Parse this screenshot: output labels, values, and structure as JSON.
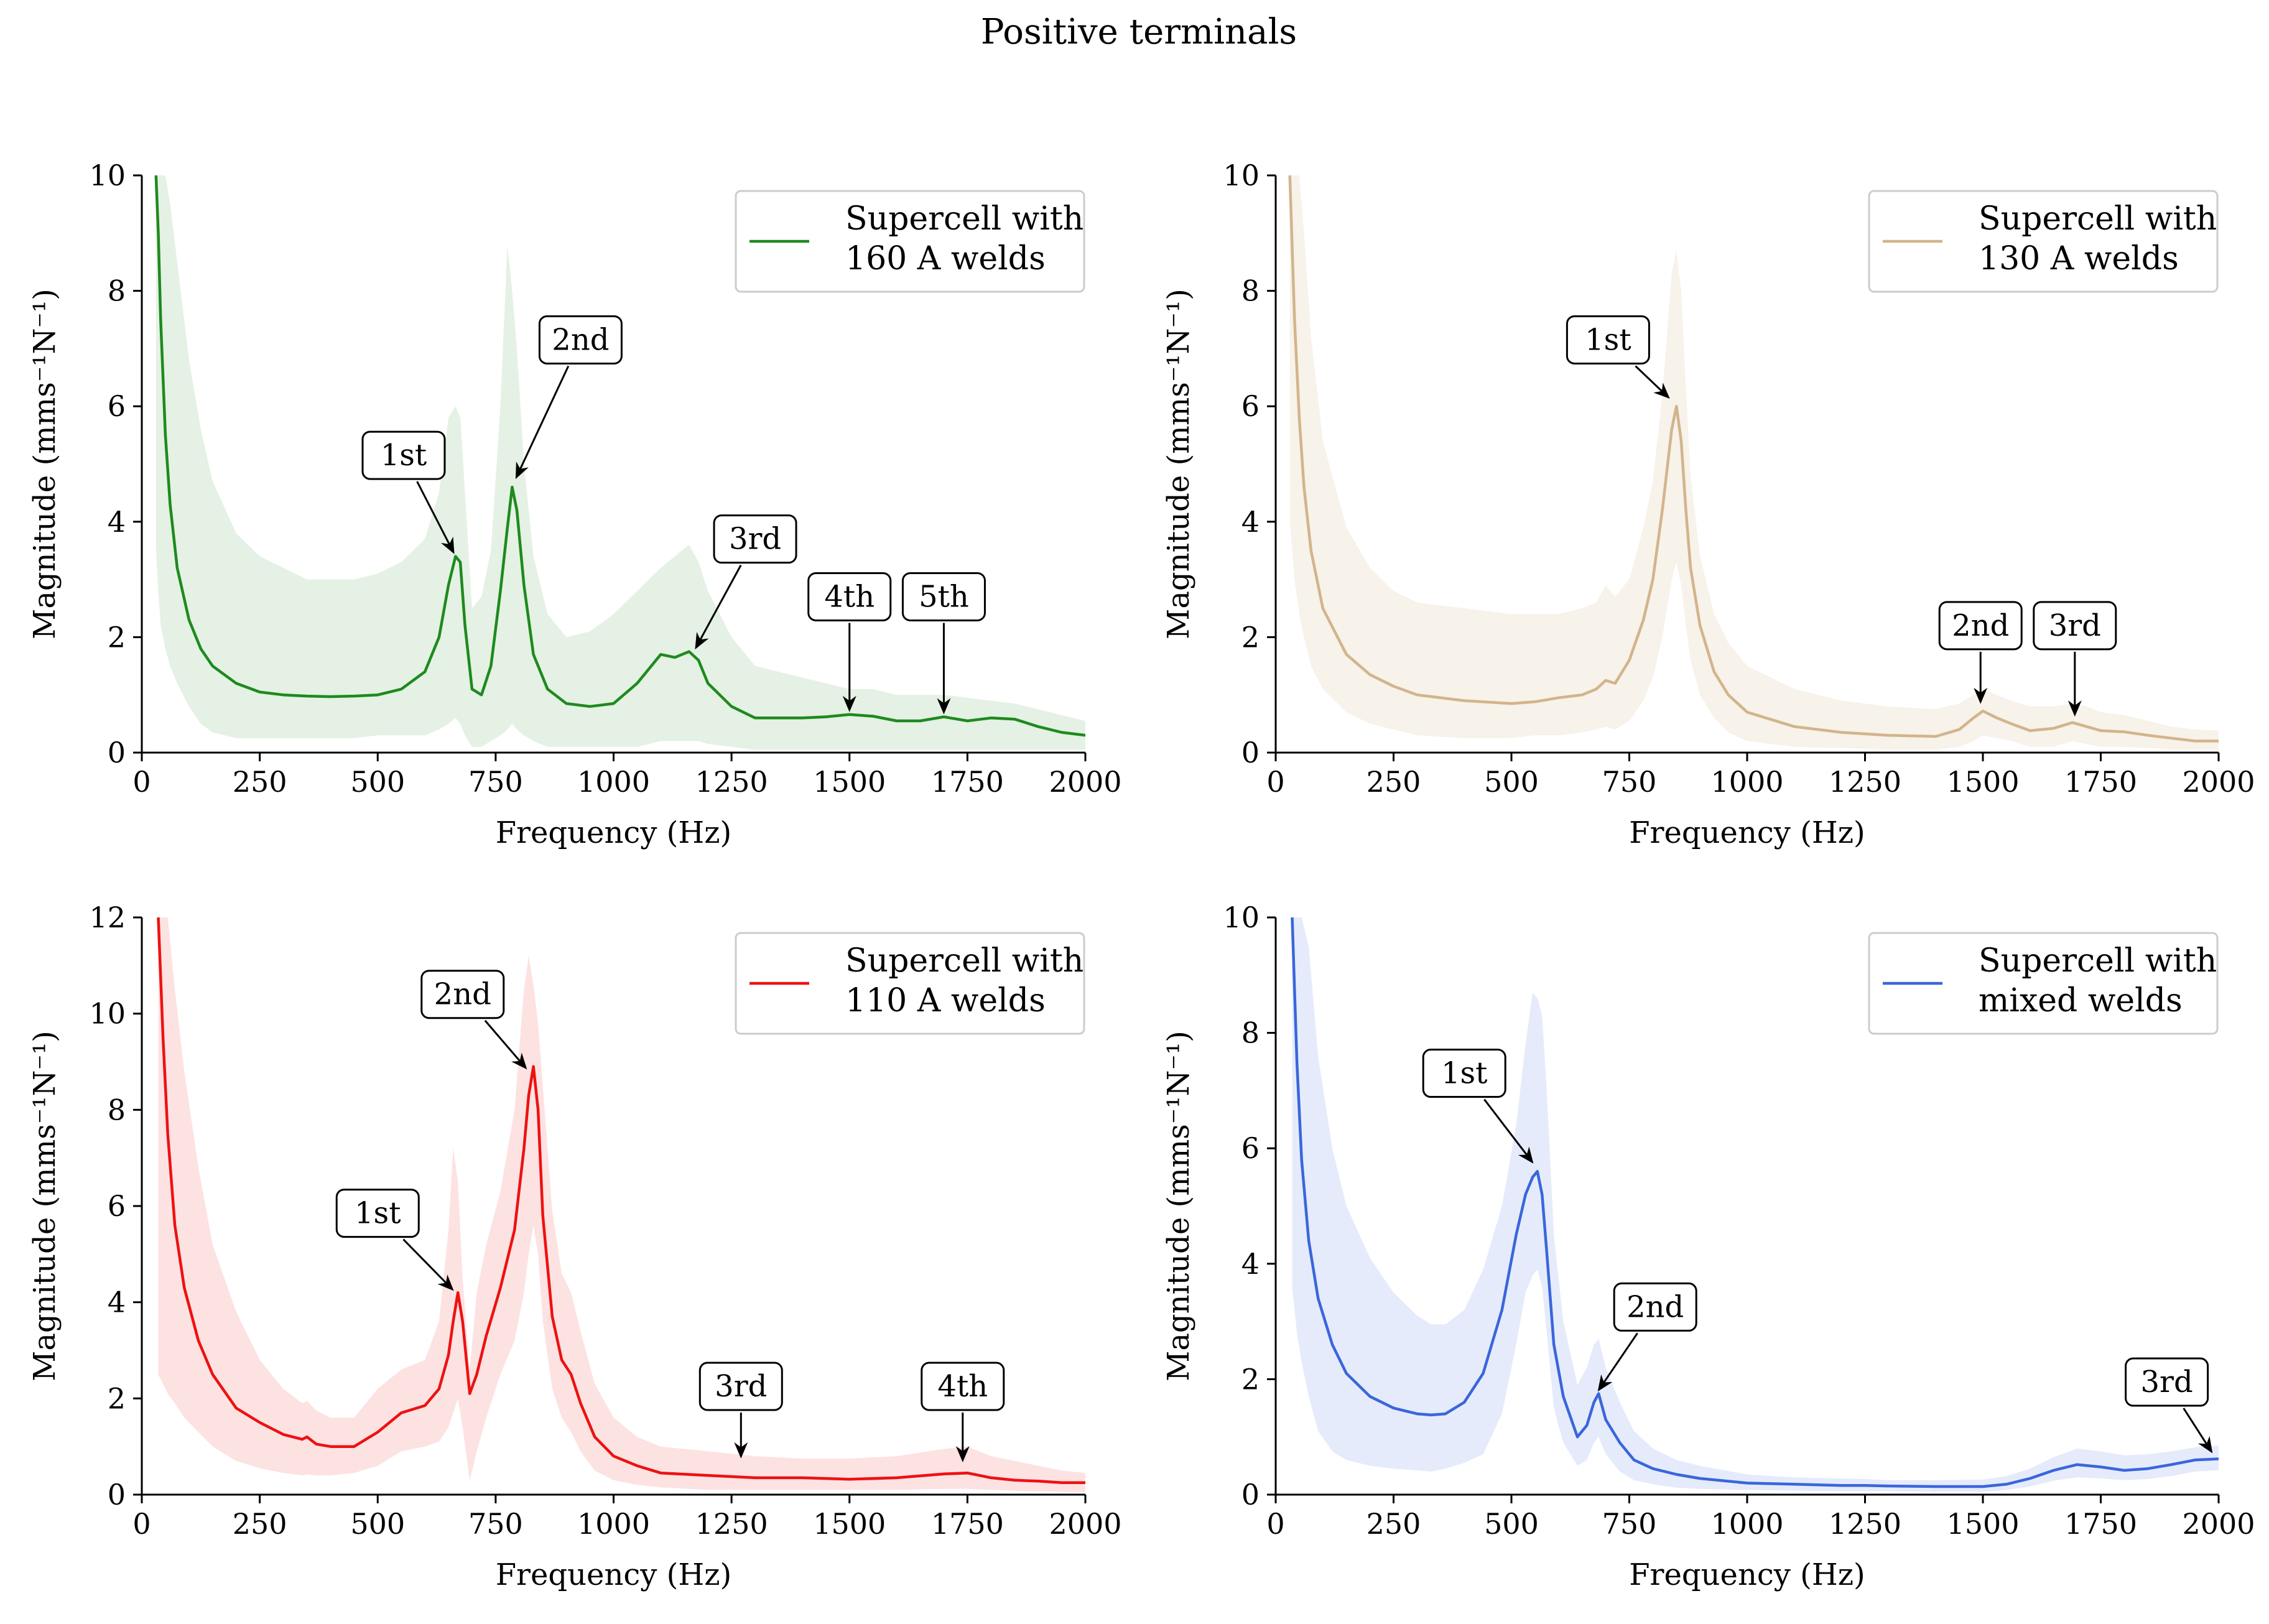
{
  "suptitle": "Positive terminals",
  "chart_data": [
    {
      "type": "line",
      "id": "160a",
      "legend": [
        "Supercell with",
        "160 A welds"
      ],
      "color": "#1e8a1e",
      "band_color": "#e4f1e4",
      "xlabel": "Frequency (Hz)",
      "ylabel": "Magnitude (mms⁻¹N⁻¹)",
      "xlim": [
        0,
        2000
      ],
      "ylim": [
        0,
        10
      ],
      "xticks": [
        0,
        250,
        500,
        750,
        1000,
        1250,
        1500,
        1750,
        2000
      ],
      "yticks": [
        0,
        2,
        4,
        6,
        8,
        10
      ],
      "x": [
        30,
        35,
        40,
        50,
        60,
        75,
        100,
        125,
        150,
        200,
        250,
        300,
        350,
        400,
        450,
        500,
        550,
        600,
        630,
        650,
        665,
        675,
        685,
        700,
        720,
        740,
        760,
        775,
        785,
        795,
        810,
        830,
        860,
        900,
        950,
        1000,
        1050,
        1100,
        1130,
        1160,
        1180,
        1200,
        1250,
        1300,
        1350,
        1400,
        1450,
        1500,
        1550,
        1600,
        1650,
        1700,
        1750,
        1800,
        1850,
        1900,
        1950,
        2000
      ],
      "y": [
        10,
        9,
        7.5,
        5.5,
        4.3,
        3.2,
        2.3,
        1.8,
        1.5,
        1.2,
        1.05,
        1.0,
        0.98,
        0.97,
        0.98,
        1.0,
        1.1,
        1.4,
        2.0,
        2.9,
        3.4,
        3.3,
        2.2,
        1.1,
        1.0,
        1.5,
        2.8,
        3.9,
        4.6,
        4.2,
        2.9,
        1.7,
        1.1,
        0.85,
        0.8,
        0.85,
        1.2,
        1.7,
        1.65,
        1.75,
        1.6,
        1.2,
        0.8,
        0.6,
        0.6,
        0.6,
        0.62,
        0.66,
        0.63,
        0.55,
        0.55,
        0.62,
        0.55,
        0.6,
        0.58,
        0.45,
        0.35,
        0.3
      ],
      "upper": [
        10,
        10,
        10,
        10,
        9.5,
        8.5,
        6.8,
        5.6,
        4.7,
        3.8,
        3.4,
        3.2,
        3.0,
        3.0,
        3.0,
        3.1,
        3.3,
        3.7,
        4.5,
        5.8,
        6.0,
        5.8,
        4.5,
        2.5,
        2.7,
        3.5,
        6.0,
        8.8,
        8.0,
        7.0,
        5.0,
        3.4,
        2.4,
        2.0,
        2.1,
        2.4,
        2.8,
        3.2,
        3.4,
        3.6,
        3.3,
        2.8,
        2.0,
        1.5,
        1.4,
        1.3,
        1.2,
        1.1,
        1.1,
        1.0,
        1.0,
        1.0,
        0.95,
        0.9,
        0.85,
        0.75,
        0.65,
        0.55
      ],
      "lower": [
        3.5,
        2.8,
        2.2,
        1.8,
        1.5,
        1.2,
        0.8,
        0.5,
        0.35,
        0.25,
        0.25,
        0.25,
        0.25,
        0.25,
        0.25,
        0.3,
        0.3,
        0.3,
        0.4,
        0.5,
        0.6,
        0.5,
        0.3,
        0.1,
        0.1,
        0.2,
        0.3,
        0.4,
        0.5,
        0.4,
        0.3,
        0.2,
        0.1,
        0.1,
        0.1,
        0.1,
        0.1,
        0.2,
        0.2,
        0.2,
        0.2,
        0.15,
        0.1,
        0.05,
        0.05,
        0.05,
        0.05,
        0.05,
        0.05,
        0.05,
        0.05,
        0.05,
        0.05,
        0.05,
        0.05,
        0.05,
        0.05,
        0.05
      ],
      "annotations": [
        {
          "label": "1st",
          "x": 665,
          "y": 3.4,
          "text_x": 555,
          "text_y": 5.15
        },
        {
          "label": "2nd",
          "x": 790,
          "y": 4.7,
          "text_x": 930,
          "text_y": 7.15
        },
        {
          "label": "3rd",
          "x": 1170,
          "y": 1.75,
          "text_x": 1300,
          "text_y": 3.7
        },
        {
          "label": "4th",
          "x": 1500,
          "y": 0.66,
          "text_x": 1500,
          "text_y": 2.7
        },
        {
          "label": "5th",
          "x": 1700,
          "y": 0.62,
          "text_x": 1700,
          "text_y": 2.7
        }
      ]
    },
    {
      "type": "line",
      "id": "130a",
      "legend": [
        "Supercell with",
        "130 A welds"
      ],
      "color": "#d2b48c",
      "band_color": "#f7f2ea",
      "xlabel": "Frequency (Hz)",
      "ylabel": "Magnitude (mms⁻¹N⁻¹)",
      "xlim": [
        0,
        2000
      ],
      "ylim": [
        0,
        10
      ],
      "xticks": [
        0,
        250,
        500,
        750,
        1000,
        1250,
        1500,
        1750,
        2000
      ],
      "yticks": [
        0,
        2,
        4,
        6,
        8,
        10
      ],
      "x": [
        30,
        40,
        50,
        60,
        75,
        100,
        150,
        200,
        250,
        300,
        400,
        500,
        550,
        600,
        650,
        680,
        700,
        720,
        750,
        780,
        800,
        820,
        840,
        850,
        860,
        870,
        880,
        900,
        930,
        960,
        1000,
        1100,
        1200,
        1300,
        1400,
        1450,
        1480,
        1500,
        1530,
        1560,
        1600,
        1650,
        1690,
        1720,
        1750,
        1800,
        1850,
        1900,
        1950,
        2000
      ],
      "y": [
        10,
        7.5,
        5.8,
        4.6,
        3.5,
        2.5,
        1.7,
        1.35,
        1.15,
        1.0,
        0.9,
        0.85,
        0.88,
        0.95,
        1.0,
        1.1,
        1.25,
        1.2,
        1.6,
        2.3,
        3.0,
        4.2,
        5.6,
        6.0,
        5.4,
        4.2,
        3.2,
        2.2,
        1.4,
        1.0,
        0.7,
        0.45,
        0.35,
        0.3,
        0.28,
        0.4,
        0.6,
        0.72,
        0.6,
        0.5,
        0.38,
        0.42,
        0.52,
        0.45,
        0.38,
        0.36,
        0.3,
        0.25,
        0.2,
        0.2
      ],
      "upper": [
        10,
        10,
        10,
        9.0,
        7.2,
        5.4,
        3.9,
        3.2,
        2.8,
        2.6,
        2.5,
        2.4,
        2.4,
        2.4,
        2.5,
        2.6,
        2.9,
        2.7,
        3.0,
        3.9,
        4.7,
        6.2,
        8.3,
        8.7,
        8.0,
        6.3,
        4.8,
        3.4,
        2.4,
        1.9,
        1.5,
        1.1,
        0.9,
        0.8,
        0.75,
        0.85,
        1.0,
        1.1,
        1.0,
        0.9,
        0.8,
        0.8,
        0.85,
        0.8,
        0.7,
        0.65,
        0.55,
        0.45,
        0.4,
        0.38
      ],
      "lower": [
        4.0,
        3.0,
        2.4,
        2.0,
        1.5,
        1.1,
        0.7,
        0.5,
        0.4,
        0.3,
        0.25,
        0.25,
        0.3,
        0.3,
        0.35,
        0.4,
        0.45,
        0.4,
        0.55,
        0.9,
        1.3,
        2.0,
        3.0,
        3.3,
        2.9,
        2.2,
        1.6,
        1.0,
        0.6,
        0.35,
        0.2,
        0.1,
        0.08,
        0.05,
        0.05,
        0.1,
        0.2,
        0.3,
        0.25,
        0.2,
        0.1,
        0.1,
        0.2,
        0.15,
        0.1,
        0.1,
        0.08,
        0.05,
        0.05,
        0.05
      ],
      "annotations": [
        {
          "label": "1st",
          "x": 840,
          "y": 6.1,
          "text_x": 705,
          "text_y": 7.15
        },
        {
          "label": "2nd",
          "x": 1495,
          "y": 0.8,
          "text_x": 1495,
          "text_y": 2.2
        },
        {
          "label": "3rd",
          "x": 1695,
          "y": 0.58,
          "text_x": 1695,
          "text_y": 2.2
        }
      ]
    },
    {
      "type": "line",
      "id": "110a",
      "legend": [
        "Supercell with",
        "110 A welds"
      ],
      "color": "#ee1111",
      "band_color": "#fde2e2",
      "xlabel": "Frequency (Hz)",
      "ylabel": "Magnitude (mms⁻¹N⁻¹)",
      "xlim": [
        0,
        2000
      ],
      "ylim": [
        0,
        12
      ],
      "xticks": [
        0,
        250,
        500,
        750,
        1000,
        1250,
        1500,
        1750,
        2000
      ],
      "yticks": [
        0,
        2,
        4,
        6,
        8,
        10,
        12
      ],
      "x": [
        35,
        45,
        55,
        70,
        90,
        120,
        150,
        200,
        250,
        300,
        340,
        350,
        370,
        400,
        450,
        500,
        550,
        600,
        630,
        650,
        660,
        670,
        680,
        695,
        710,
        730,
        760,
        790,
        810,
        820,
        830,
        840,
        850,
        870,
        890,
        910,
        930,
        960,
        1000,
        1050,
        1100,
        1200,
        1300,
        1400,
        1500,
        1600,
        1700,
        1750,
        1800,
        1850,
        1900,
        1950,
        2000
      ],
      "y": [
        12,
        9.5,
        7.5,
        5.6,
        4.3,
        3.2,
        2.5,
        1.8,
        1.5,
        1.25,
        1.15,
        1.2,
        1.05,
        1.0,
        1.0,
        1.3,
        1.7,
        1.85,
        2.2,
        2.9,
        3.6,
        4.2,
        3.6,
        2.1,
        2.5,
        3.3,
        4.3,
        5.5,
        7.2,
        8.3,
        8.9,
        8.0,
        5.8,
        3.7,
        2.8,
        2.5,
        1.9,
        1.2,
        0.8,
        0.6,
        0.45,
        0.4,
        0.35,
        0.35,
        0.32,
        0.35,
        0.43,
        0.45,
        0.35,
        0.3,
        0.28,
        0.25,
        0.25
      ],
      "upper": [
        12,
        12,
        12,
        10.5,
        8.8,
        6.8,
        5.2,
        3.8,
        2.8,
        2.2,
        1.9,
        1.95,
        1.75,
        1.6,
        1.6,
        2.2,
        2.6,
        2.8,
        3.6,
        5.5,
        7.2,
        6.5,
        4.5,
        2.6,
        4.2,
        5.2,
        6.3,
        8.0,
        10.5,
        11.2,
        10.6,
        9.8,
        8.5,
        5.9,
        4.6,
        4.2,
        3.4,
        2.3,
        1.6,
        1.2,
        1.0,
        0.9,
        0.8,
        0.75,
        0.75,
        0.8,
        0.95,
        1.0,
        0.8,
        0.7,
        0.6,
        0.5,
        0.45
      ],
      "lower": [
        2.5,
        2.3,
        2.1,
        1.9,
        1.6,
        1.3,
        1.0,
        0.7,
        0.55,
        0.45,
        0.4,
        0.42,
        0.4,
        0.4,
        0.45,
        0.6,
        0.9,
        1.0,
        1.1,
        1.4,
        1.7,
        2.0,
        1.4,
        0.3,
        0.9,
        1.6,
        2.5,
        3.2,
        4.2,
        5.0,
        5.6,
        5.0,
        3.6,
        2.2,
        1.6,
        1.3,
        0.9,
        0.5,
        0.3,
        0.2,
        0.15,
        0.1,
        0.1,
        0.1,
        0.1,
        0.1,
        0.12,
        0.12,
        0.1,
        0.08,
        0.07,
        0.06,
        0.05
      ],
      "annotations": [
        {
          "label": "1st",
          "x": 665,
          "y": 4.2,
          "text_x": 500,
          "text_y": 5.85
        },
        {
          "label": "2nd",
          "x": 820,
          "y": 8.8,
          "text_x": 680,
          "text_y": 10.4
        },
        {
          "label": "3rd",
          "x": 1270,
          "y": 0.7,
          "text_x": 1270,
          "text_y": 2.25
        },
        {
          "label": "4th",
          "x": 1740,
          "y": 0.62,
          "text_x": 1740,
          "text_y": 2.25
        }
      ]
    },
    {
      "type": "line",
      "id": "mixed",
      "legend": [
        "Supercell with",
        "mixed welds"
      ],
      "color": "#3a66db",
      "band_color": "#e5ebfb",
      "xlabel": "Frequency (Hz)",
      "ylabel": "Magnitude (mms⁻¹N⁻¹)",
      "xlim": [
        0,
        2000
      ],
      "ylim": [
        0,
        10
      ],
      "xticks": [
        0,
        250,
        500,
        750,
        1000,
        1250,
        1500,
        1750,
        2000
      ],
      "yticks": [
        0,
        2,
        4,
        6,
        8,
        10
      ],
      "x": [
        35,
        45,
        55,
        70,
        90,
        120,
        150,
        200,
        250,
        300,
        330,
        360,
        400,
        440,
        480,
        510,
        530,
        545,
        555,
        565,
        575,
        590,
        610,
        640,
        660,
        675,
        685,
        700,
        730,
        760,
        800,
        850,
        900,
        1000,
        1100,
        1200,
        1250,
        1300,
        1400,
        1500,
        1550,
        1600,
        1650,
        1700,
        1750,
        1800,
        1850,
        1900,
        1950,
        2000
      ],
      "y": [
        10,
        7.5,
        5.8,
        4.4,
        3.4,
        2.6,
        2.1,
        1.7,
        1.5,
        1.4,
        1.38,
        1.4,
        1.6,
        2.1,
        3.2,
        4.5,
        5.2,
        5.5,
        5.6,
        5.2,
        4.2,
        2.6,
        1.7,
        1.0,
        1.2,
        1.6,
        1.75,
        1.3,
        0.9,
        0.6,
        0.45,
        0.35,
        0.28,
        0.2,
        0.18,
        0.16,
        0.16,
        0.15,
        0.14,
        0.14,
        0.18,
        0.28,
        0.42,
        0.52,
        0.48,
        0.42,
        0.45,
        0.52,
        0.6,
        0.62
      ],
      "upper": [
        10,
        10,
        10,
        9.5,
        7.6,
        6.0,
        5.0,
        4.1,
        3.5,
        3.1,
        2.95,
        2.95,
        3.2,
        3.9,
        5.0,
        6.4,
        7.8,
        8.7,
        8.6,
        8.3,
        7.0,
        4.5,
        3.0,
        1.9,
        2.2,
        2.6,
        2.7,
        2.2,
        1.6,
        1.1,
        0.8,
        0.6,
        0.5,
        0.35,
        0.3,
        0.28,
        0.27,
        0.25,
        0.25,
        0.26,
        0.32,
        0.45,
        0.65,
        0.8,
        0.75,
        0.68,
        0.7,
        0.75,
        0.82,
        0.85
      ],
      "lower": [
        3.6,
        2.8,
        2.3,
        1.7,
        1.1,
        0.75,
        0.6,
        0.5,
        0.45,
        0.42,
        0.4,
        0.45,
        0.55,
        0.7,
        1.4,
        2.6,
        3.5,
        3.8,
        3.9,
        3.6,
        2.8,
        1.5,
        0.9,
        0.5,
        0.6,
        0.9,
        1.0,
        0.7,
        0.4,
        0.25,
        0.18,
        0.12,
        0.1,
        0.08,
        0.07,
        0.06,
        0.06,
        0.06,
        0.05,
        0.05,
        0.08,
        0.14,
        0.24,
        0.3,
        0.28,
        0.25,
        0.27,
        0.32,
        0.4,
        0.42
      ],
      "annotations": [
        {
          "label": "1st",
          "x": 550,
          "y": 5.7,
          "text_x": 400,
          "text_y": 7.3
        },
        {
          "label": "2nd",
          "x": 680,
          "y": 1.75,
          "text_x": 805,
          "text_y": 3.25
        },
        {
          "label": "3rd",
          "x": 1990,
          "y": 0.68,
          "text_x": 1890,
          "text_y": 1.95
        }
      ]
    }
  ]
}
